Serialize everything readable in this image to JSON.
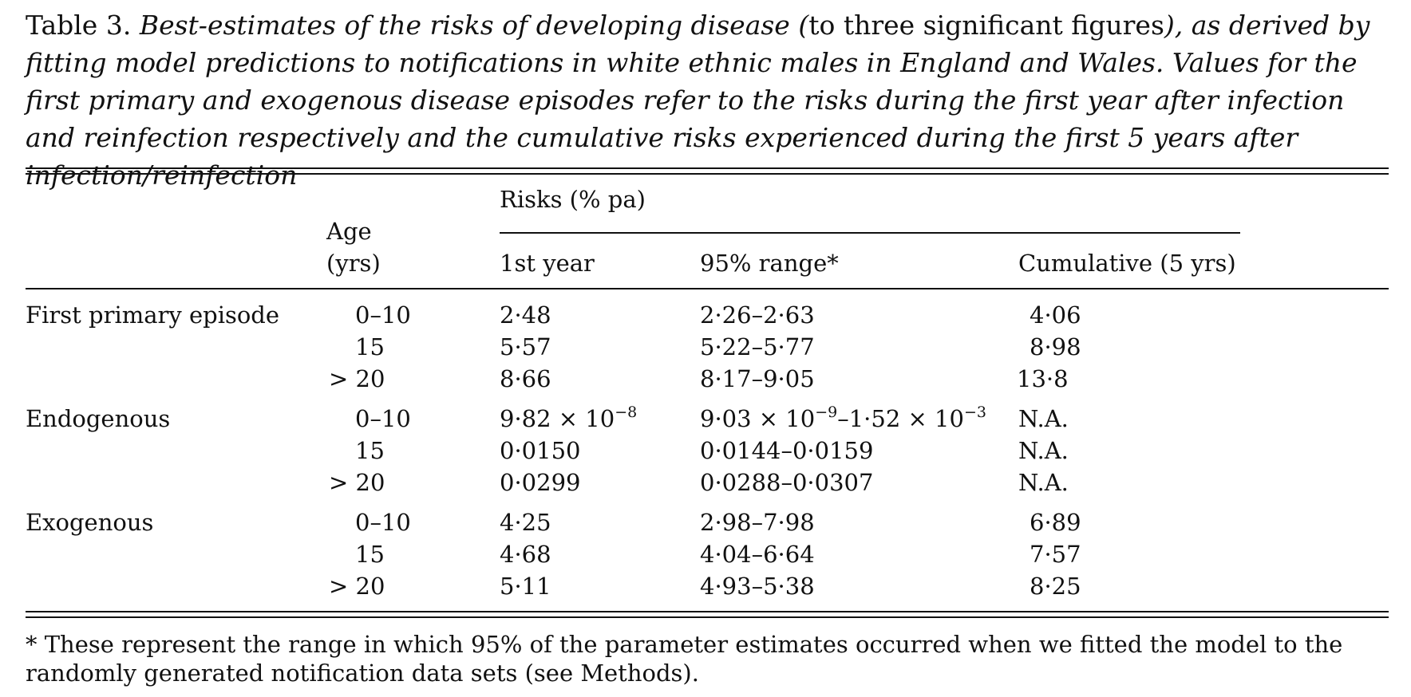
{
  "caption": {
    "label": "Table 3.",
    "italic_a": "Best-estimates of the risks of developing disease (",
    "upright_a": "to three significant figures",
    "italic_b": "), as derived by fitting model predictions to notifications in white ethnic males in England and Wales. Values for the first primary and exogenous disease episodes refer to the risks during the first year after infection and reinfection respectively and the cumulative risks experienced during the first 5 years after infection/reinfection"
  },
  "table": {
    "header": {
      "age_line1": "Age",
      "age_line2": "(yrs)",
      "risks_group": "Risks (% pa)",
      "col_first_year": "1st year",
      "col_range": "95% range*",
      "col_cumulative": "Cumulative (5 yrs)"
    },
    "groups": [
      {
        "name": "First primary episode",
        "rows": [
          {
            "age": "0–10",
            "first_year": "2·48",
            "range": "2·26–2·63",
            "cumulative": "4·06"
          },
          {
            "age": "15",
            "first_year": "5·57",
            "range": "5·22–5·77",
            "cumulative": "8·98"
          },
          {
            "age": "> 20",
            "first_year": "8·66",
            "range": "8·17–9·05",
            "cumulative": "13·8"
          }
        ]
      },
      {
        "name": "Endogenous",
        "rows": [
          {
            "age": "0–10",
            "first_year": {
              "mantissa": "9·82 × 10",
              "exp": "−8"
            },
            "range": {
              "a_mantissa": "9·03 × 10",
              "a_exp": "−9",
              "sep": "–",
              "b_mantissa": "1·52 × 10",
              "b_exp": "−3"
            },
            "cumulative": "N.A."
          },
          {
            "age": "15",
            "first_year": "0·0150",
            "range": "0·0144–0·0159",
            "cumulative": "N.A."
          },
          {
            "age": "> 20",
            "first_year": "0·0299",
            "range": "0·0288–0·0307",
            "cumulative": "N.A."
          }
        ]
      },
      {
        "name": "Exogenous",
        "rows": [
          {
            "age": "0–10",
            "first_year": "4·25",
            "range": "2·98–7·98",
            "cumulative": "6·89"
          },
          {
            "age": "15",
            "first_year": "4·68",
            "range": "4·04–6·64",
            "cumulative": "7·57"
          },
          {
            "age": "> 20",
            "first_year": "5·11",
            "range": "4·93–5·38",
            "cumulative": "8·25"
          }
        ]
      }
    ]
  },
  "footnote": "* These represent the range in which 95% of the parameter estimates occurred when we fitted the model to the randomly generated notification data sets (see Methods)."
}
